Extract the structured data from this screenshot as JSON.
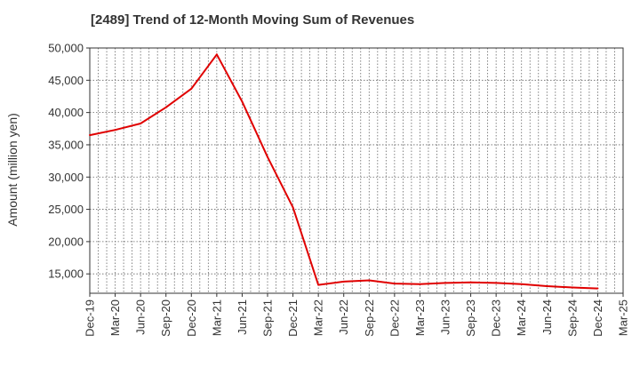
{
  "chart_data": {
    "type": "line",
    "title": "[2489]  Trend of 12-Month Moving Sum of Revenues",
    "ylabel": "Amount (million yen)",
    "xlabel": "",
    "ylim": [
      12000,
      50000
    ],
    "yticks": [
      15000,
      20000,
      25000,
      30000,
      35000,
      40000,
      45000,
      50000
    ],
    "ytick_labels": [
      "15,000",
      "20,000",
      "25,000",
      "30,000",
      "35,000",
      "40,000",
      "45,000",
      "50,000"
    ],
    "categories": [
      "Dec-19",
      "Mar-20",
      "Jun-20",
      "Sep-20",
      "Dec-20",
      "Mar-21",
      "Jun-21",
      "Sep-21",
      "Dec-21",
      "Mar-22",
      "Jun-22",
      "Sep-22",
      "Dec-22",
      "Mar-23",
      "Jun-23",
      "Sep-23",
      "Dec-23",
      "Mar-24",
      "Jun-24",
      "Sep-24",
      "Dec-24",
      "Mar-25"
    ],
    "grid": true,
    "series": [
      {
        "color": "#e00000",
        "values": [
          36500,
          37300,
          38300,
          40800,
          43700,
          49000,
          41700,
          33100,
          25300,
          13300,
          13800,
          14000,
          13500,
          13400,
          13600,
          13700,
          13600,
          13400,
          13100,
          12900,
          12750,
          null
        ]
      }
    ]
  }
}
